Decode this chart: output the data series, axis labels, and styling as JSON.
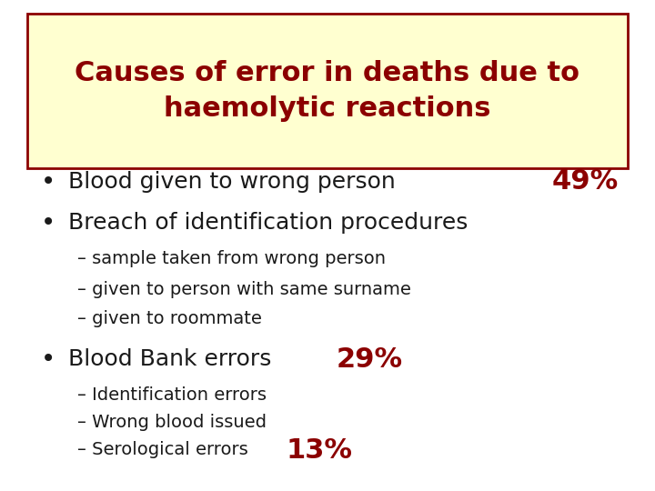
{
  "title_line1": "Causes of error in deaths due to",
  "title_line2": "haemolytic reactions",
  "title_color": "#8B0000",
  "title_bg_color": "#FFFFD0",
  "title_border_color": "#8B0000",
  "bg_color": "#FFFFFF",
  "bullet_color": "#1a1a1a",
  "percent_color": "#8B0000",
  "items": [
    {
      "type": "bullet",
      "text": "Blood given to wrong person",
      "percent": "49%",
      "percent_inline": false
    },
    {
      "type": "bullet",
      "text": "Breach of identification procedures",
      "percent": null,
      "percent_inline": false
    },
    {
      "type": "sub",
      "text": "– sample taken from wrong person",
      "percent": null,
      "percent_inline": false
    },
    {
      "type": "sub",
      "text": "– given to person with same surname",
      "percent": null,
      "percent_inline": false
    },
    {
      "type": "sub",
      "text": "– given to roommate",
      "percent": null,
      "percent_inline": false
    },
    {
      "type": "bullet",
      "text": "Blood Bank errors",
      "percent": "29%",
      "percent_inline": true
    },
    {
      "type": "sub",
      "text": "– Identification errors",
      "percent": null,
      "percent_inline": false
    },
    {
      "type": "sub",
      "text": "– Wrong blood issued",
      "percent": null,
      "percent_inline": false
    },
    {
      "type": "sub",
      "text": "– Serological errors",
      "percent": "13%",
      "percent_inline": true
    }
  ],
  "bullet_char": "•",
  "large_fontsize": 18,
  "medium_fontsize": 14,
  "title_fontsize": 22,
  "percent_large_fontsize": 22,
  "percent_inline_fontsize": 22
}
